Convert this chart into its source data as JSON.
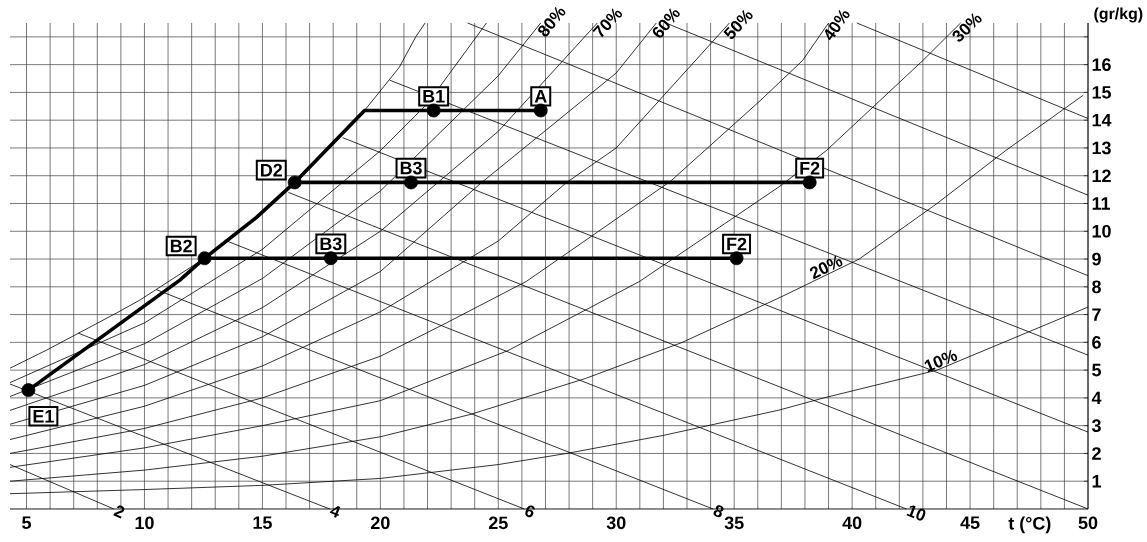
{
  "chart_data": {
    "type": "line",
    "xlabel": "t (°C)",
    "ylabel": "(gr/kg)",
    "xlim": [
      4.3,
      50
    ],
    "ylim": [
      0,
      17.5
    ],
    "grid": true,
    "marker": "none",
    "xticks": [
      5,
      {
        "value": 6,
        "label": null
      },
      {
        "value": 7,
        "label": null
      },
      {
        "value": 8,
        "label": null
      },
      {
        "value": 9,
        "label": null
      },
      10,
      {
        "value": 11,
        "label": null
      },
      {
        "value": 12,
        "label": null
      },
      {
        "value": 13,
        "label": null
      },
      {
        "value": 14,
        "label": null
      },
      15,
      {
        "value": 16,
        "label": null
      },
      {
        "value": 17,
        "label": null
      },
      {
        "value": 18,
        "label": null
      },
      {
        "value": 19,
        "label": null
      },
      20,
      {
        "value": 21,
        "label": null
      },
      {
        "value": 22,
        "label": null
      },
      {
        "value": 23,
        "label": null
      },
      {
        "value": 24,
        "label": null
      },
      25,
      {
        "value": 26,
        "label": null
      },
      {
        "value": 27,
        "label": null
      },
      {
        "value": 28,
        "label": null
      },
      {
        "value": 29,
        "label": null
      },
      30,
      {
        "value": 31,
        "label": null
      },
      {
        "value": 32,
        "label": null
      },
      {
        "value": 33,
        "label": null
      },
      {
        "value": 34,
        "label": null
      },
      35,
      {
        "value": 36,
        "label": null
      },
      {
        "value": 37,
        "label": null
      },
      {
        "value": 38,
        "label": null
      },
      {
        "value": 39,
        "label": null
      },
      40,
      {
        "value": 41,
        "label": null
      },
      {
        "value": 42,
        "label": null
      },
      {
        "value": 43,
        "label": null
      },
      {
        "value": 44,
        "label": null
      },
      45,
      {
        "value": 46,
        "label": null
      },
      {
        "value": 47,
        "label": null
      },
      {
        "value": 48,
        "label": null
      },
      {
        "value": 49,
        "label": null
      },
      50
    ],
    "yticks": [
      1,
      2,
      3,
      4,
      5,
      6,
      7,
      8,
      9,
      10,
      11,
      12,
      13,
      14,
      15,
      16,
      {
        "value": 17,
        "label": null
      }
    ],
    "series": [
      {
        "color": "#000000",
        "x": [
          4.3,
          5.85,
          8.8,
          9.8,
          12.55,
          14.75,
          16.37,
          19.33,
          20.8,
          21.5,
          21.9
        ],
        "values": [
          5.07,
          5.72,
          7.05,
          7.52,
          9.03,
          10.5,
          11.76,
          14.35,
          15.9,
          17.0,
          17.5
        ]
      },
      {
        "color": "#000000",
        "x": [
          4.3,
          10,
          15,
          20,
          22,
          24.5
        ],
        "values": [
          4.55,
          6.7,
          9.35,
          12.9,
          14.6,
          17.5
        ]
      },
      {
        "name": "80%",
        "color": "#000000",
        "x": [
          4.3,
          10,
          15,
          20,
          25,
          26.8
        ],
        "values": [
          4.05,
          5.95,
          8.3,
          11.45,
          15.6,
          17.5
        ]
      },
      {
        "name": "70%",
        "color": "#000000",
        "x": [
          4.3,
          10,
          15,
          20,
          25,
          29.2
        ],
        "values": [
          3.55,
          5.2,
          7.25,
          10.0,
          13.6,
          17.5
        ]
      },
      {
        "name": "60%",
        "color": "#000000",
        "x": [
          4.3,
          10,
          15,
          20,
          24.3,
          30,
          31.7
        ],
        "values": [
          3.05,
          4.45,
          6.2,
          8.55,
          11.76,
          15.7,
          17.5
        ]
      },
      {
        "name": "50%",
        "color": "#000000",
        "x": [
          4.3,
          10,
          15,
          20,
          25,
          27.9,
          30,
          34.8
        ],
        "values": [
          2.5,
          3.7,
          5.15,
          7.1,
          9.65,
          11.76,
          13.0,
          17.5
        ]
      },
      {
        "name": "40%",
        "color": "#000000",
        "x": [
          4.3,
          10,
          15,
          20,
          22.8,
          26.2,
          32.3,
          36.1,
          37.9,
          39
        ],
        "values": [
          2.0,
          2.9,
          4.0,
          5.5,
          6.7,
          8.2,
          11.8,
          14.7,
          16.15,
          17.5
        ]
      },
      {
        "name": "30%",
        "color": "#000000",
        "x": [
          4.3,
          10,
          15,
          20,
          25.4,
          29,
          31,
          36.9,
          38.9,
          43,
          44.6
        ],
        "values": [
          1.5,
          2.2,
          3.0,
          3.9,
          5.7,
          7.3,
          8.2,
          11.6,
          12.9,
          16.15,
          17.5
        ]
      },
      {
        "name": "20%",
        "color": "#000000",
        "x": [
          4.3,
          10,
          15,
          20,
          23.8,
          28.7,
          32.8,
          36.9,
          40.3,
          43.6,
          46.5,
          49.8
        ],
        "values": [
          1.0,
          1.4,
          1.9,
          2.6,
          3.4,
          4.7,
          6.0,
          7.6,
          9.0,
          11.0,
          12.9,
          14.9
        ]
      },
      {
        "name": "10%",
        "color": "#000000",
        "x": [
          4.3,
          10,
          15,
          20,
          25,
          27.9,
          32,
          36.9,
          38.8,
          43.6,
          50
        ],
        "values": [
          0.55,
          0.7,
          0.85,
          1.1,
          1.6,
          2.0,
          2.65,
          3.56,
          4.0,
          5.0,
          7.27
        ]
      },
      {
        "name": "2",
        "color": "#000000",
        "x": [
          4.3,
          8.7
        ],
        "values": [
          1.6,
          0
        ]
      },
      {
        "name": "4",
        "color": "#000000",
        "x": [
          4.3,
          17.85
        ],
        "values": [
          4.5,
          0
        ]
      },
      {
        "name": "6",
        "color": "#000000",
        "x": [
          7.2,
          26.1
        ],
        "values": [
          6.33,
          0
        ]
      },
      {
        "name": "8",
        "color": "#000000",
        "x": [
          10.5,
          34.1
        ],
        "values": [
          7.9,
          0
        ]
      },
      {
        "name": "10",
        "color": "#000000",
        "x": [
          13.4,
          42.3
        ],
        "values": [
          9.68,
          0
        ]
      },
      {
        "color": "#000000",
        "x": [
          16.1,
          50
        ],
        "values": [
          11.4,
          0
        ]
      },
      {
        "color": "#000000",
        "x": [
          18.4,
          50
        ],
        "values": [
          13.37,
          2.77
        ]
      },
      {
        "color": "#000000",
        "x": [
          20.4,
          50
        ],
        "values": [
          15.44,
          5.54
        ]
      },
      {
        "color": "#000000",
        "x": [
          23.7,
          50
        ],
        "values": [
          17.5,
          8.4
        ]
      },
      {
        "color": "#000000",
        "x": [
          32.1,
          50
        ],
        "values": [
          17.5,
          11.3
        ]
      },
      {
        "color": "#000000",
        "x": [
          40.2,
          50
        ],
        "values": [
          17.5,
          14.06
        ]
      },
      {
        "color": "#000000",
        "x": [
          5.08,
          11.5,
          12.55,
          14.75,
          16.37,
          19.33,
          22.26,
          26.8
        ],
        "values": [
          4.28,
          8.24,
          9.03,
          10.5,
          11.76,
          14.35,
          14.35,
          14.35
        ]
      },
      {
        "color": "#000000",
        "x": [
          12.55,
          17.9,
          35.1
        ],
        "values": [
          9.03,
          9.03,
          9.03
        ]
      },
      {
        "color": "#000000",
        "x": [
          16.37,
          21.3,
          38.2
        ],
        "values": [
          11.76,
          11.76,
          11.76
        ]
      },
      {
        "type": "scatter",
        "marker": "circle",
        "color": "#000000",
        "x": [
          5.08,
          12.55,
          16.37,
          22.26,
          26.8,
          21.3,
          38.2,
          17.9,
          35.1
        ],
        "values": [
          4.28,
          9.03,
          11.76,
          14.35,
          14.35,
          11.76,
          11.76,
          9.03,
          9.03
        ]
      }
    ],
    "annotations": [
      {
        "text": "E1",
        "x": 5.08,
        "y": 4.28
      },
      {
        "text": "B2",
        "x": 12.55,
        "y": 9.03
      },
      {
        "text": "D2",
        "x": 16.37,
        "y": 11.76
      },
      {
        "text": "B1",
        "x": 22.26,
        "y": 14.35
      },
      {
        "text": "A",
        "x": 26.8,
        "y": 14.35
      },
      {
        "text": "B3",
        "x": 21.3,
        "y": 11.76
      },
      {
        "text": "F2",
        "x": 38.2,
        "y": 11.76
      },
      {
        "text": "B3",
        "x": 17.9,
        "y": 9.03
      },
      {
        "text": "F2",
        "x": 35.1,
        "y": 9.03
      }
    ]
  }
}
